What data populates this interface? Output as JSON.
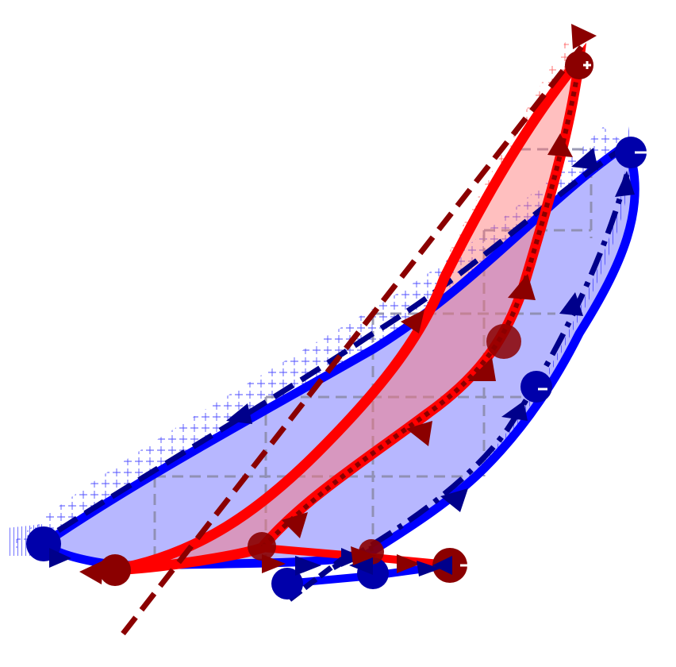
{
  "diagram": {
    "colors": {
      "blue": "#0000ff",
      "blue_fill": "#b3b3ff",
      "dark_blue": "#00008b",
      "red": "#ff0000",
      "red_fill": "#ff8a8a",
      "dark_red": "#8b0000",
      "grid": "#8a8aa8"
    },
    "loops": [
      {
        "name": "blue-loop",
        "color": "blue"
      },
      {
        "name": "red-loop",
        "color": "red"
      }
    ],
    "markers": "triangle-arrow",
    "grid_visible": true
  }
}
